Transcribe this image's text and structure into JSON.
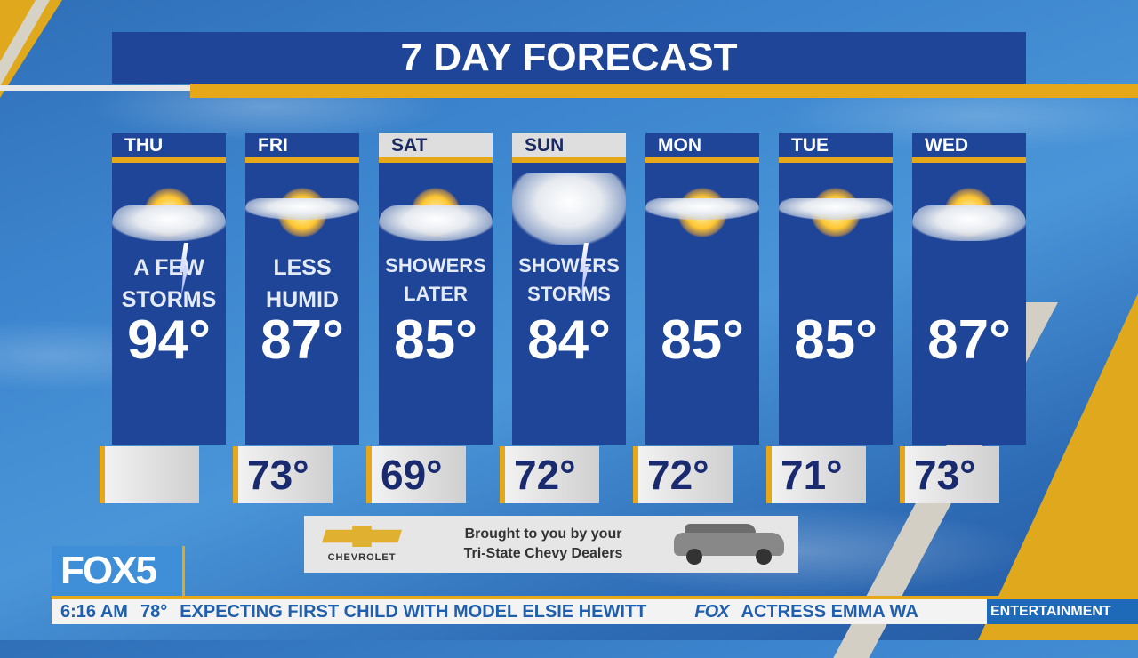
{
  "title": "7 DAY FORECAST",
  "days": [
    {
      "day": "THU",
      "icon": "sun-cloud-lightning-icon",
      "line1": "A FEW",
      "line2": "STORMS",
      "high": "94°",
      "low": ""
    },
    {
      "day": "FRI",
      "icon": "sun-light-cloud-icon",
      "line1": "LESS",
      "line2": "HUMID",
      "high": "87°",
      "low": "73°"
    },
    {
      "day": "SAT",
      "icon": "partly-cloudy-icon",
      "line1": "SHOWERS",
      "line2": "LATER",
      "high": "85°",
      "low": "69°"
    },
    {
      "day": "SUN",
      "icon": "cloud-lightning-icon",
      "line1": "SHOWERS",
      "line2": "STORMS",
      "high": "84°",
      "low": "72°"
    },
    {
      "day": "MON",
      "icon": "sun-light-cloud-icon",
      "line1": "",
      "line2": "",
      "high": "85°",
      "low": "72°"
    },
    {
      "day": "TUE",
      "icon": "sun-light-cloud-icon",
      "line1": "",
      "line2": "",
      "high": "85°",
      "low": "71°"
    },
    {
      "day": "WED",
      "icon": "partly-cloudy-icon",
      "line1": "",
      "line2": "",
      "high": "87°",
      "low": "73°"
    }
  ],
  "sponsor": {
    "brand": "CHEVROLET",
    "line1": "Brought to you by your",
    "line2": "Tri-State Chevy Dealers"
  },
  "station": "FOX5",
  "ticker": {
    "time": "6:16 AM",
    "temp": "78°",
    "headline1": "EXPECTING FIRST CHILD WITH MODEL ELSIE HEWITT",
    "network": "FOX",
    "headline2": "ACTRESS EMMA WA",
    "category": "ENTERTAINMENT"
  },
  "colors": {
    "panel": "#1e4597",
    "accent": "#e6a719",
    "ticker_text": "#1f5fae"
  }
}
